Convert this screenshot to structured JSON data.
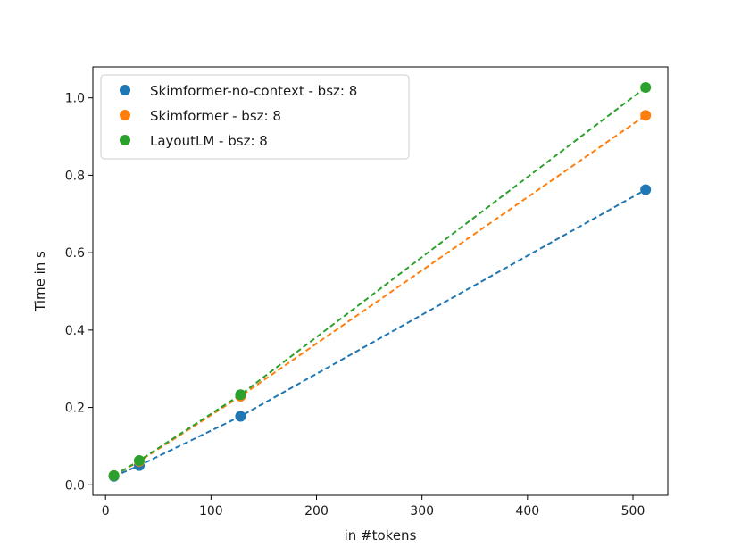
{
  "chart_data": {
    "type": "scatter",
    "title": "",
    "xlabel": "in #tokens",
    "ylabel": "Time in s",
    "xlim": [
      -12,
      533
    ],
    "ylim": [
      -0.027,
      1.08
    ],
    "xticks": [
      0,
      100,
      200,
      300,
      400,
      500
    ],
    "yticks": [
      0.0,
      0.2,
      0.4,
      0.6,
      0.8,
      1.0
    ],
    "x_tick_labels": [
      "0",
      "100",
      "200",
      "300",
      "400",
      "500"
    ],
    "y_tick_labels": [
      "0.0",
      "0.2",
      "0.4",
      "0.6",
      "0.8",
      "1.0"
    ],
    "grid": false,
    "legend_position": "top-left",
    "series": [
      {
        "name": "Skimformer-no-context - bsz: 8",
        "color": "#1f77b4",
        "x": [
          8,
          32,
          128,
          512
        ],
        "y": [
          0.022,
          0.05,
          0.177,
          0.763
        ],
        "fit_line": "dashed"
      },
      {
        "name": "Skimformer - bsz: 8",
        "color": "#ff7f0e",
        "x": [
          8,
          32,
          128,
          512
        ],
        "y": [
          0.024,
          0.061,
          0.229,
          0.955
        ],
        "fit_line": "dashed"
      },
      {
        "name": "LayoutLM - bsz: 8",
        "color": "#2ca02c",
        "x": [
          8,
          32,
          128,
          512
        ],
        "y": [
          0.024,
          0.063,
          0.233,
          1.027
        ],
        "fit_line": "dashed"
      }
    ]
  }
}
